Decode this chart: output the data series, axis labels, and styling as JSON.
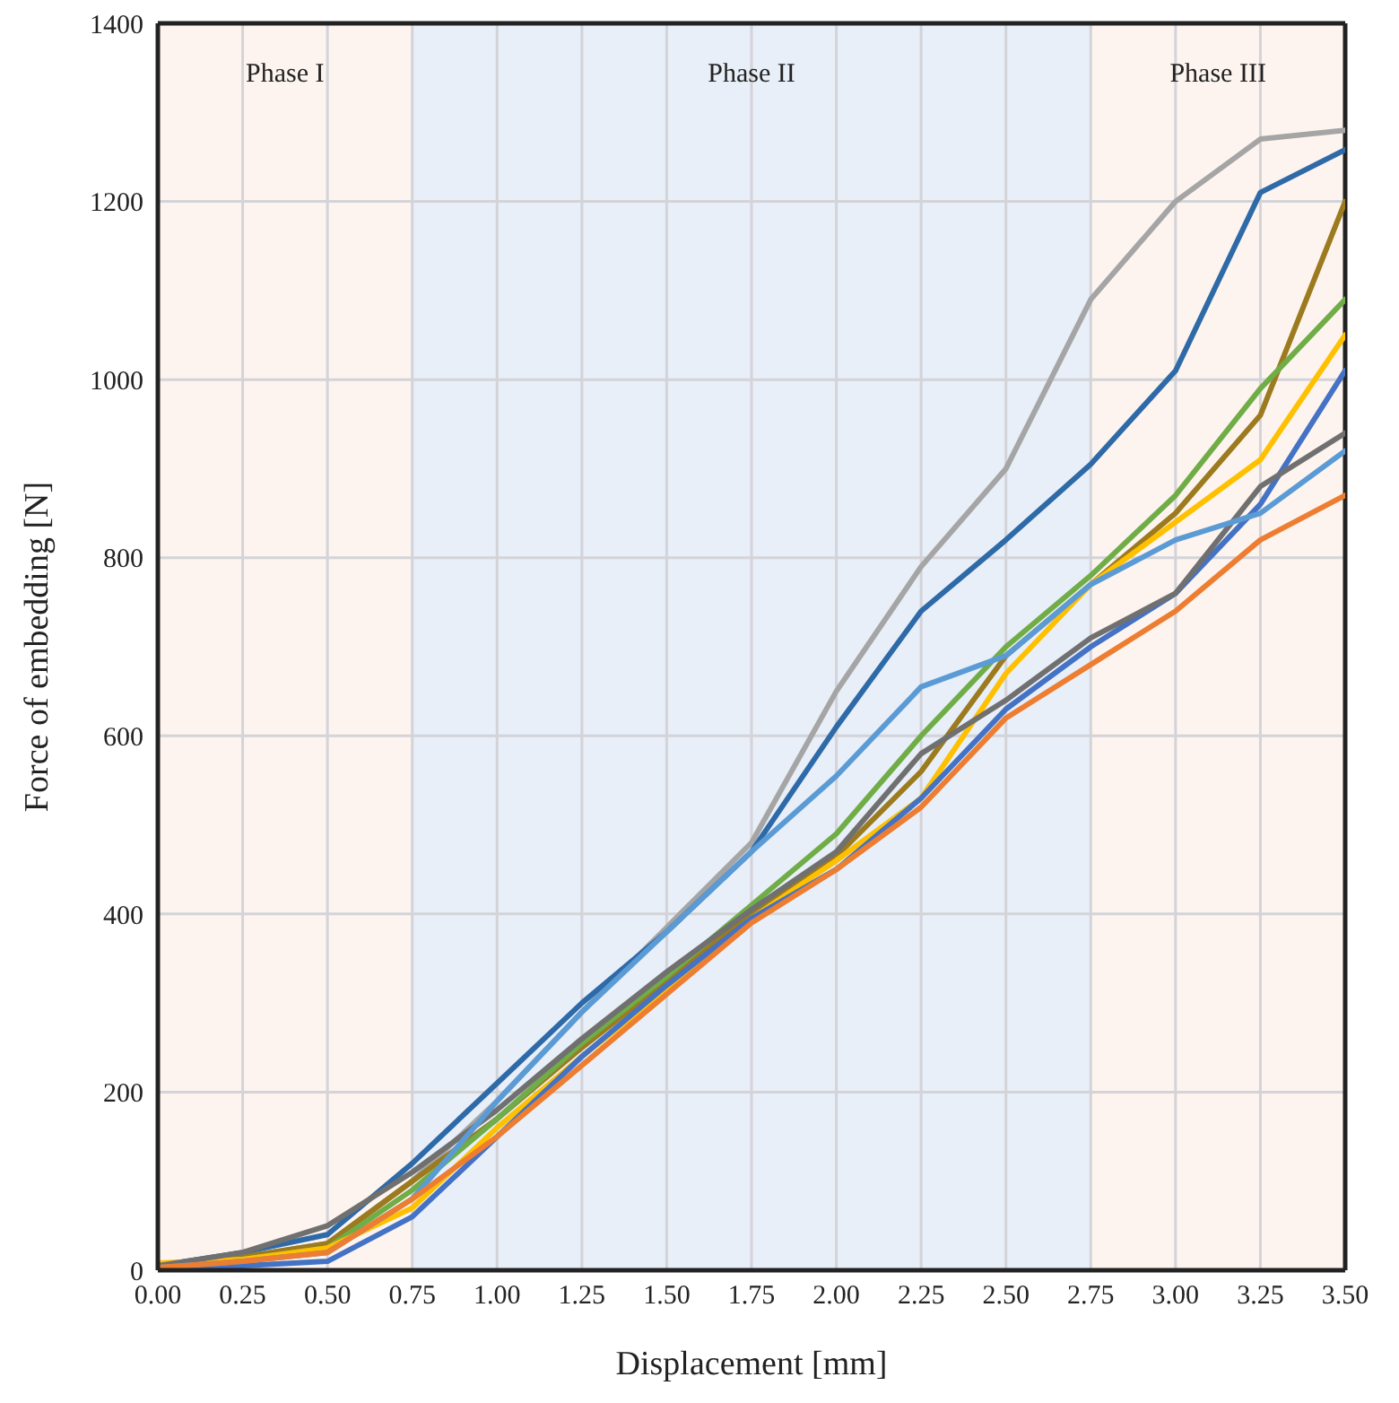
{
  "chart_data": {
    "type": "line",
    "xlabel": "Displacement [mm]",
    "ylabel": "Force of embedding [N]",
    "x": [
      0,
      0.25,
      0.5,
      0.75,
      1,
      1.25,
      1.5,
      1.75,
      2,
      2.25,
      2.5,
      2.75,
      3,
      3.25,
      3.5
    ],
    "series": [
      {
        "color": "#a5a5a5",
        "values": [
          5,
          15,
          30,
          100,
          190,
          290,
          385,
          480,
          650,
          790,
          900,
          1090,
          1200,
          1270,
          1280
        ]
      },
      {
        "color": "#2e6aa8",
        "values": [
          5,
          20,
          40,
          120,
          210,
          300,
          380,
          470,
          610,
          740,
          820,
          905,
          1010,
          1210,
          1258
        ]
      },
      {
        "color": "#9c7a1e",
        "values": [
          5,
          15,
          30,
          100,
          170,
          250,
          325,
          400,
          465,
          560,
          690,
          770,
          850,
          960,
          1200
        ]
      },
      {
        "color": "#70ad47",
        "values": [
          5,
          12,
          25,
          90,
          170,
          255,
          330,
          410,
          490,
          600,
          700,
          780,
          870,
          990,
          1090
        ]
      },
      {
        "color": "#ffc000",
        "values": [
          8,
          12,
          25,
          70,
          160,
          240,
          315,
          395,
          460,
          530,
          670,
          770,
          840,
          910,
          1050
        ]
      },
      {
        "color": "#4472c4",
        "values": [
          3,
          5,
          10,
          60,
          150,
          240,
          320,
          395,
          450,
          530,
          630,
          700,
          760,
          860,
          1010
        ]
      },
      {
        "color": "#707070",
        "values": [
          5,
          20,
          50,
          110,
          180,
          260,
          335,
          405,
          470,
          580,
          640,
          710,
          760,
          880,
          940
        ]
      },
      {
        "color": "#5b9bd5",
        "values": [
          3,
          10,
          20,
          80,
          190,
          290,
          380,
          470,
          555,
          655,
          690,
          770,
          820,
          850,
          920
        ]
      },
      {
        "color": "#ed7d31",
        "values": [
          3,
          10,
          20,
          80,
          150,
          230,
          310,
          390,
          450,
          520,
          620,
          680,
          740,
          820,
          870
        ]
      }
    ],
    "xlim": [
      0,
      3.5
    ],
    "xticks": [
      {
        "value": 0,
        "label": "0.00"
      },
      {
        "value": 0.25,
        "label": "0.25"
      },
      {
        "value": 0.5,
        "label": "0.50"
      },
      {
        "value": 0.75,
        "label": "0.75"
      },
      {
        "value": 1,
        "label": "1.00"
      },
      {
        "value": 1.25,
        "label": "1.25"
      },
      {
        "value": 1.5,
        "label": "1.50"
      },
      {
        "value": 1.75,
        "label": "1.75"
      },
      {
        "value": 2,
        "label": "2.00"
      },
      {
        "value": 2.25,
        "label": "2.25"
      },
      {
        "value": 2.5,
        "label": "2.50"
      },
      {
        "value": 2.75,
        "label": "2.75"
      },
      {
        "value": 3,
        "label": "3.00"
      },
      {
        "value": 3.25,
        "label": "3.25"
      },
      {
        "value": 3.5,
        "label": "3.50"
      }
    ],
    "ylim": [
      0,
      1400
    ],
    "yticks": [
      0,
      200,
      400,
      600,
      800,
      1000,
      1200,
      1400
    ],
    "grid": true,
    "marker": "none",
    "line_style": "solid",
    "bands": [
      {
        "axis": "x",
        "from": 0,
        "to": 0.75,
        "label": "Phase I",
        "color": "#fdf4ef"
      },
      {
        "axis": "x",
        "from": 0.75,
        "to": 2.75,
        "label": "Phase II",
        "color": "#e8eff8"
      },
      {
        "axis": "x",
        "from": 2.75,
        "to": 3.5,
        "label": "Phase III",
        "color": "#fdf4ef"
      }
    ]
  }
}
